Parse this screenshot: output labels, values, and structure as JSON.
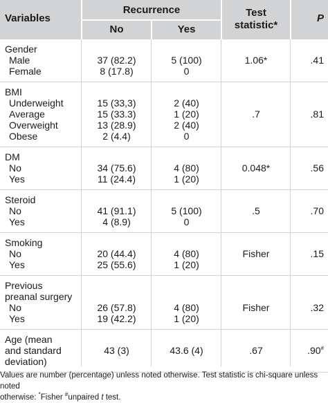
{
  "header": {
    "variables": "Variables",
    "recurrence": "Recurrence",
    "no": "No",
    "yes": "Yes",
    "test_statistic": "Test statistic*",
    "p": "P"
  },
  "groups": [
    {
      "label_lines": [
        "Gender"
      ],
      "rows": [
        {
          "label": "Male",
          "no": "37 (82.2)",
          "yes": "5 (100)",
          "test": "1.06*",
          "p": ".41"
        },
        {
          "label": "Female",
          "no": "8 (17.8)",
          "yes": "0",
          "test": "",
          "p": ""
        }
      ]
    },
    {
      "label_lines": [
        "BMI"
      ],
      "rows": [
        {
          "label": "Underweight",
          "no": "15 (33,3)",
          "yes": "2 (40)",
          "test": "",
          "p": ""
        },
        {
          "label": "Average",
          "no": "15 (33.3)",
          "yes": "1 (20)",
          "test": ".7",
          "p": ".81"
        },
        {
          "label": "Overweight",
          "no": "13 (28.9)",
          "yes": "2 (40)",
          "test": "",
          "p": ""
        },
        {
          "label": "Obese",
          "no": "2 (4.4)",
          "yes": "0",
          "test": "",
          "p": ""
        }
      ]
    },
    {
      "label_lines": [
        "DM"
      ],
      "rows": [
        {
          "label": "No",
          "no": "34 (75.6)",
          "yes": "4 (80)",
          "test": "0.048*",
          "p": ".56"
        },
        {
          "label": "Yes",
          "no": "11 (24.4)",
          "yes": "1 (20)",
          "test": "",
          "p": ""
        }
      ]
    },
    {
      "label_lines": [
        "Steroid"
      ],
      "rows": [
        {
          "label": "No",
          "no": "41 (91.1)",
          "yes": "5 (100)",
          "test": ".5",
          "p": ".70"
        },
        {
          "label": "Yes",
          "no": "4 (8.9)",
          "yes": "0",
          "test": "",
          "p": ""
        }
      ]
    },
    {
      "label_lines": [
        "Smoking"
      ],
      "rows": [
        {
          "label": "No",
          "no": "20 (44.4)",
          "yes": "4 (80)",
          "test": "Fisher",
          "p": ".15"
        },
        {
          "label": "Yes",
          "no": "25 (55.6)",
          "yes": "1 (20)",
          "test": "",
          "p": ""
        }
      ]
    },
    {
      "label_lines": [
        "Previous",
        "preanal surgery"
      ],
      "rows": [
        {
          "label": "No",
          "no": "26 (57.8)",
          "yes": "4 (80)",
          "test": "Fisher",
          "p": ".32"
        },
        {
          "label": "Yes",
          "no": "19 (42.2)",
          "yes": "1 (20)",
          "test": "",
          "p": ""
        }
      ]
    },
    {
      "label_lines": [
        "Age (mean",
        "and standard",
        "deviation)"
      ],
      "rows": [],
      "inline": {
        "no": "43 (3)",
        "yes": "43.6 (4)",
        "test": ".67",
        "p": ".90",
        "p_sup": "#"
      }
    }
  ],
  "footnote": {
    "line1": "Values are number (percentage) unless noted otherwise. Test statistic is chi-square unless noted",
    "line2_a": "otherwise: ",
    "sup1": "*",
    "line2_b": "Fisher ",
    "sup2": "#",
    "line2_c": "unpaired ",
    "line2_t": "t",
    "line2_d": " test."
  }
}
